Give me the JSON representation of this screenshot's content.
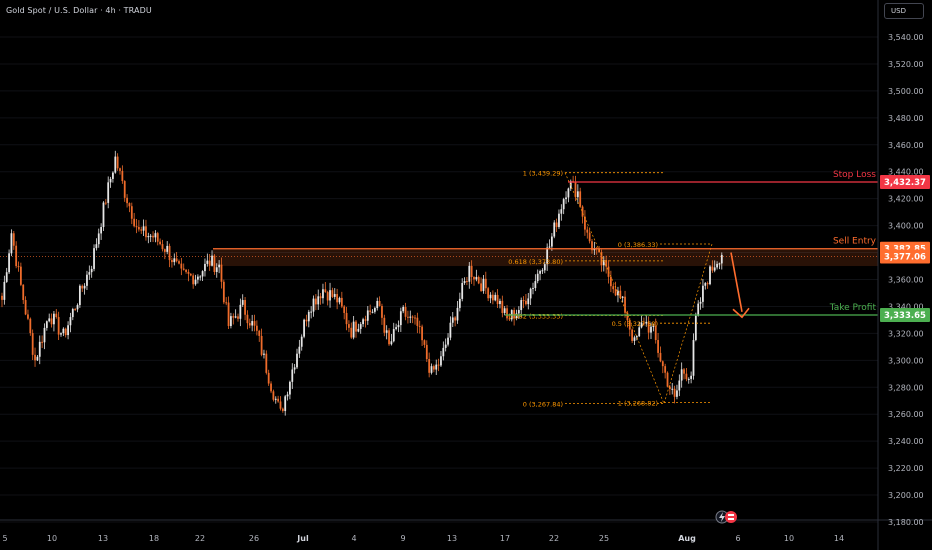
{
  "header": {
    "symbol_line": "Gold Spot / U.S. Dollar · 4h · TRADU",
    "currency_button": "USD"
  },
  "colors": {
    "up": "#e6e6e6",
    "down": "#ef6c2b",
    "stop": "#f23645",
    "entry": "#ff6d2e",
    "target": "#4caf50",
    "fib": "#ff9800",
    "axis_text": "#b2b5be",
    "bg": "#000000"
  },
  "icons": [
    "lightning-icon",
    "flag-icon"
  ],
  "chart_data": {
    "type": "candlestick",
    "title": "Gold Spot / U.S. Dollar · 4h · TRADU",
    "ylim": [
      3180,
      3550
    ],
    "y_ticks": [
      "3,180.00",
      "3,200.00",
      "3,220.00",
      "3,240.00",
      "3,260.00",
      "3,280.00",
      "3,300.00",
      "3,320.00",
      "3,340.00",
      "3,360.00",
      "3,380.00",
      "3,400.00",
      "3,420.00",
      "3,440.00",
      "3,460.00",
      "3,480.00",
      "3,500.00",
      "3,520.00",
      "3,540.00"
    ],
    "x_ticks": [
      "5",
      "10",
      "13",
      "18",
      "22",
      "26",
      "Jul",
      "4",
      "9",
      "13",
      "17",
      "22",
      "25",
      "Aug",
      "6",
      "10",
      "14"
    ],
    "price_anchors": [
      {
        "i": 0,
        "p": 3345
      },
      {
        "i": 4,
        "p": 3395
      },
      {
        "i": 8,
        "p": 3355
      },
      {
        "i": 14,
        "p": 3300
      },
      {
        "i": 20,
        "p": 3335
      },
      {
        "i": 26,
        "p": 3318
      },
      {
        "i": 32,
        "p": 3345
      },
      {
        "i": 38,
        "p": 3372
      },
      {
        "i": 44,
        "p": 3420
      },
      {
        "i": 48,
        "p": 3450
      },
      {
        "i": 52,
        "p": 3425
      },
      {
        "i": 58,
        "p": 3395
      },
      {
        "i": 64,
        "p": 3392
      },
      {
        "i": 70,
        "p": 3382
      },
      {
        "i": 76,
        "p": 3363
      },
      {
        "i": 82,
        "p": 3362
      },
      {
        "i": 88,
        "p": 3373
      },
      {
        "i": 92,
        "p": 3370
      },
      {
        "i": 96,
        "p": 3326
      },
      {
        "i": 102,
        "p": 3340
      },
      {
        "i": 108,
        "p": 3320
      },
      {
        "i": 114,
        "p": 3282
      },
      {
        "i": 118,
        "p": 3260
      },
      {
        "i": 124,
        "p": 3300
      },
      {
        "i": 130,
        "p": 3340
      },
      {
        "i": 136,
        "p": 3353
      },
      {
        "i": 142,
        "p": 3345
      },
      {
        "i": 148,
        "p": 3322
      },
      {
        "i": 154,
        "p": 3335
      },
      {
        "i": 160,
        "p": 3340
      },
      {
        "i": 164,
        "p": 3310
      },
      {
        "i": 170,
        "p": 3335
      },
      {
        "i": 176,
        "p": 3325
      },
      {
        "i": 182,
        "p": 3290
      },
      {
        "i": 186,
        "p": 3300
      },
      {
        "i": 192,
        "p": 3335
      },
      {
        "i": 198,
        "p": 3368
      },
      {
        "i": 204,
        "p": 3355
      },
      {
        "i": 210,
        "p": 3345
      },
      {
        "i": 214,
        "p": 3330
      },
      {
        "i": 220,
        "p": 3340
      },
      {
        "i": 226,
        "p": 3360
      },
      {
        "i": 232,
        "p": 3385
      },
      {
        "i": 236,
        "p": 3410
      },
      {
        "i": 240,
        "p": 3432
      },
      {
        "i": 244,
        "p": 3425
      },
      {
        "i": 248,
        "p": 3392
      },
      {
        "i": 252,
        "p": 3378
      },
      {
        "i": 258,
        "p": 3360
      },
      {
        "i": 264,
        "p": 3338
      },
      {
        "i": 268,
        "p": 3312
      },
      {
        "i": 272,
        "p": 3330
      },
      {
        "i": 276,
        "p": 3320
      },
      {
        "i": 280,
        "p": 3295
      },
      {
        "i": 285,
        "p": 3270
      },
      {
        "i": 288,
        "p": 3292
      },
      {
        "i": 292,
        "p": 3290
      },
      {
        "i": 294,
        "p": 3330
      },
      {
        "i": 298,
        "p": 3358
      },
      {
        "i": 302,
        "p": 3372
      },
      {
        "i": 305,
        "p": 3380
      }
    ],
    "levels": [
      {
        "name": "Stop Loss",
        "price": 3432.37,
        "label": "3,432.37",
        "color": "#f23645"
      },
      {
        "name": "Sell Entry",
        "price": 3382.85,
        "label": "3,382.85",
        "color": "#ff6d2e"
      },
      {
        "name": "",
        "price": 3377.06,
        "label": "3,377.06",
        "color": "#ff6d2e"
      },
      {
        "name": "Take Profit",
        "price": 3333.65,
        "label": "3,333.65",
        "color": "#4caf50"
      }
    ],
    "fib_left": [
      {
        "label": "1 (3,439.29)",
        "price": 3439.29
      },
      {
        "label": "0.618 (3,373.80)",
        "price": 3373.8
      },
      {
        "label": "0.382 (3,333.33)",
        "price": 3333.33
      },
      {
        "label": "0 (3,267.84)",
        "price": 3267.84
      }
    ],
    "fib_right": [
      {
        "label": "0 (3,386.33)",
        "price": 3386.33
      },
      {
        "label": "0.5 (3,327.58)",
        "price": 3327.58
      },
      {
        "label": "1 (3,268.82)",
        "price": 3268.82
      }
    ]
  }
}
